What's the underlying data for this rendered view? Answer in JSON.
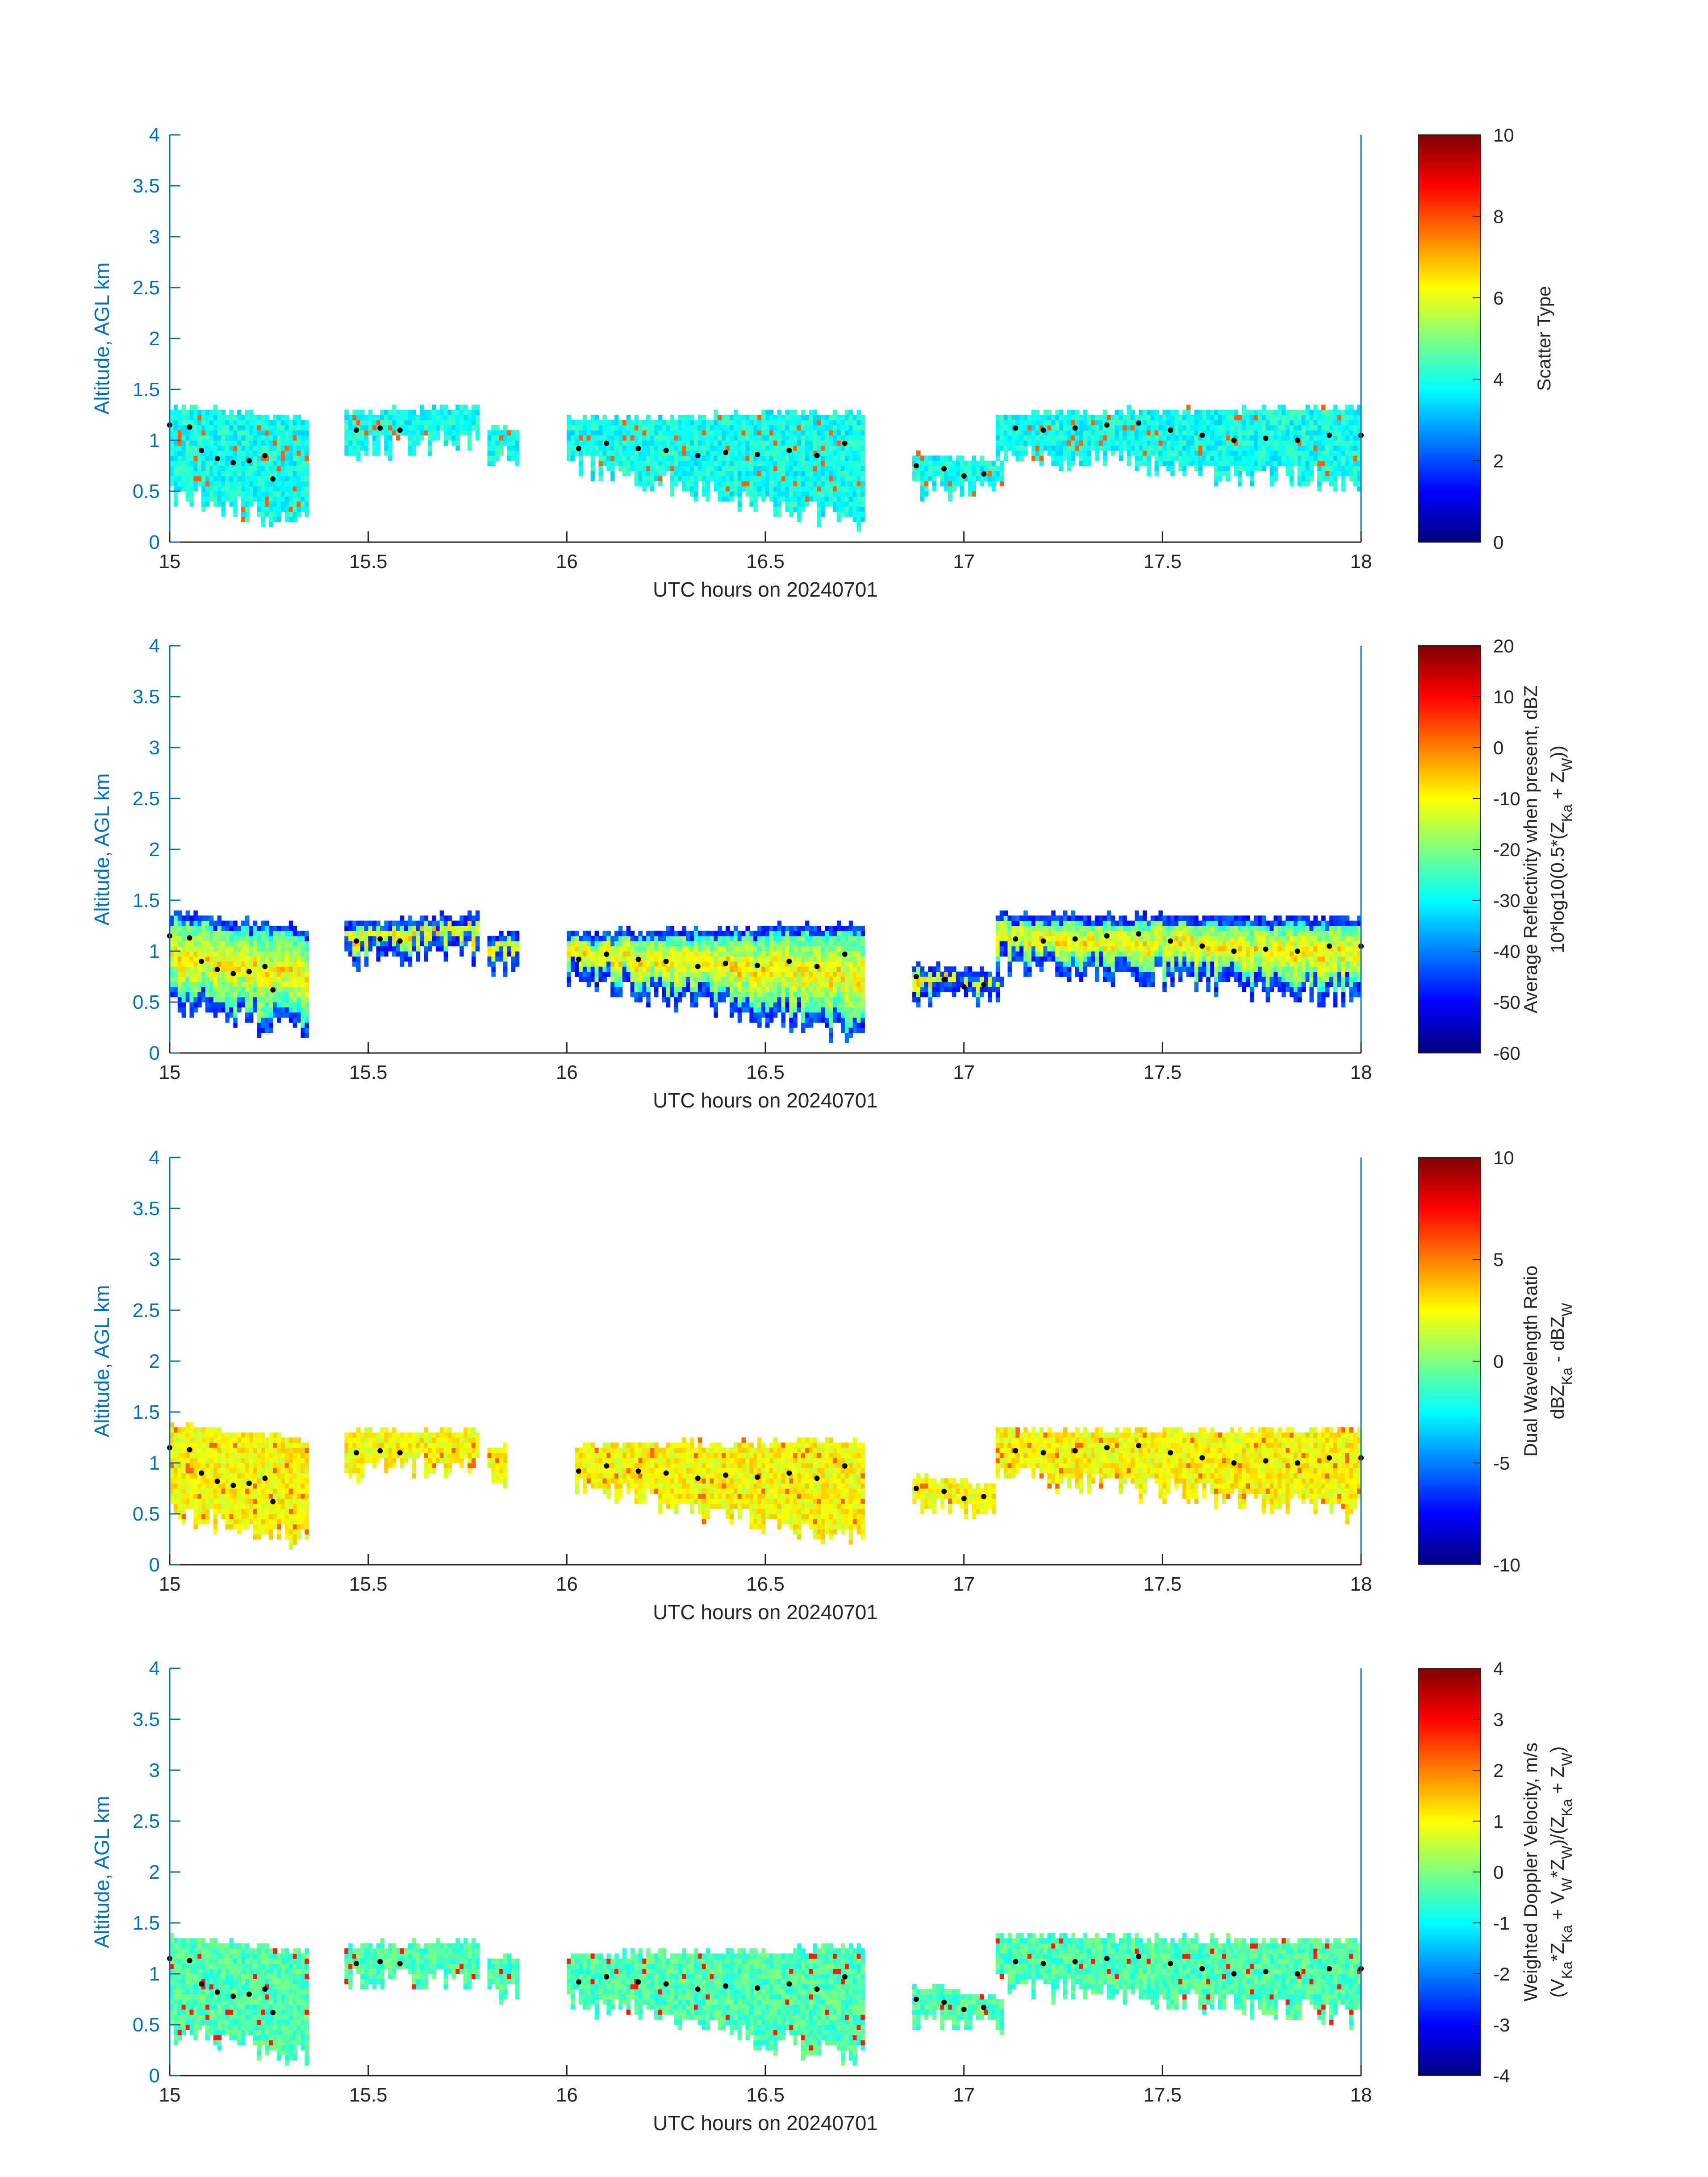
{
  "figure": {
    "shared_xlabel": "UTC hours on 20240701",
    "shared_ylabel": "Altitude, AGL km"
  },
  "chart_data": [
    {
      "type": "heatmap",
      "title": "",
      "xlabel": "UTC hours on 20240701",
      "ylabel": "Altitude, AGL km",
      "xlim": [
        15,
        18
      ],
      "ylim": [
        0,
        4
      ],
      "xticks": [
        "15",
        "15.5",
        "16",
        "16.5",
        "17",
        "17.5",
        "18"
      ],
      "yticks": [
        "0",
        "0.5",
        "1",
        "1.5",
        "2",
        "2.5",
        "3",
        "3.5",
        "4"
      ],
      "colorbar": {
        "label_lines": [
          "Scatter Type"
        ],
        "range": [
          0,
          10
        ],
        "ticks": [
          "0",
          "2",
          "4",
          "6",
          "8",
          "10"
        ]
      },
      "dominant_value": 3.9,
      "accent_value": 7.8,
      "cloud_layers": [
        {
          "x": [
            15.0,
            15.35
          ],
          "ybot": [
            0.5,
            0.2
          ],
          "ytop": [
            1.3,
            1.2
          ]
        },
        {
          "x": [
            15.44,
            15.78
          ],
          "ybot": [
            0.95,
            1.0
          ],
          "ytop": [
            1.25,
            1.3
          ]
        },
        {
          "x": [
            15.8,
            15.88
          ],
          "ybot": [
            0.85,
            0.85
          ],
          "ytop": [
            1.1,
            1.1
          ]
        },
        {
          "x": [
            16.0,
            16.75
          ],
          "ybot": [
            0.8,
            0.2
          ],
          "ytop": [
            1.2,
            1.25
          ]
        },
        {
          "x": [
            16.87,
            17.1
          ],
          "ybot": [
            0.55,
            0.6
          ],
          "ytop": [
            0.85,
            0.75
          ]
        },
        {
          "x": [
            17.08,
            18.0
          ],
          "ybot": [
            0.9,
            0.6
          ],
          "ytop": [
            1.25,
            1.3
          ]
        }
      ],
      "cloud_base_points": [
        [
          15.0,
          1.15
        ],
        [
          15.05,
          1.13
        ],
        [
          15.08,
          0.9
        ],
        [
          15.12,
          0.82
        ],
        [
          15.16,
          0.78
        ],
        [
          15.2,
          0.8
        ],
        [
          15.24,
          0.85
        ],
        [
          15.26,
          0.62
        ],
        [
          15.47,
          1.1
        ],
        [
          15.53,
          1.12
        ],
        [
          15.58,
          1.1
        ],
        [
          16.03,
          0.92
        ],
        [
          16.1,
          0.97
        ],
        [
          16.18,
          0.92
        ],
        [
          16.25,
          0.9
        ],
        [
          16.33,
          0.85
        ],
        [
          16.4,
          0.88
        ],
        [
          16.48,
          0.86
        ],
        [
          16.56,
          0.9
        ],
        [
          16.63,
          0.85
        ],
        [
          16.7,
          0.97
        ],
        [
          16.88,
          0.75
        ],
        [
          16.95,
          0.72
        ],
        [
          17.0,
          0.65
        ],
        [
          17.05,
          0.67
        ],
        [
          17.13,
          1.12
        ],
        [
          17.2,
          1.1
        ],
        [
          17.28,
          1.12
        ],
        [
          17.36,
          1.15
        ],
        [
          17.44,
          1.17
        ],
        [
          17.52,
          1.1
        ],
        [
          17.6,
          1.05
        ],
        [
          17.68,
          1.0
        ],
        [
          17.76,
          1.02
        ],
        [
          17.84,
          1.0
        ],
        [
          17.92,
          1.05
        ],
        [
          18.0,
          1.05
        ]
      ]
    },
    {
      "type": "heatmap",
      "title": "",
      "xlabel": "UTC hours on 20240701",
      "ylabel": "Altitude, AGL km",
      "xlim": [
        15,
        18
      ],
      "ylim": [
        0,
        4
      ],
      "xticks": [
        "15",
        "15.5",
        "16",
        "16.5",
        "17",
        "17.5",
        "18"
      ],
      "yticks": [
        "0",
        "0.5",
        "1",
        "1.5",
        "2",
        "2.5",
        "3",
        "3.5",
        "4"
      ],
      "colorbar": {
        "label_lines": [
          "Average Reflectivity when present, dBZ",
          "10*log10(0.5*(Z_Ka + Z_W))"
        ],
        "range": [
          -60,
          20
        ],
        "ticks": [
          "-60",
          "-50",
          "-40",
          "-30",
          "-20",
          "-10",
          "0",
          "10",
          "20"
        ]
      },
      "dominant_value": -30,
      "edge_value": -50,
      "core_value": -8,
      "cloud_layers": [
        {
          "x": [
            15.0,
            15.35
          ],
          "ybot": [
            0.5,
            0.2
          ],
          "ytop": [
            1.35,
            1.2
          ]
        },
        {
          "x": [
            15.44,
            15.78
          ],
          "ybot": [
            0.95,
            1.0
          ],
          "ytop": [
            1.25,
            1.35
          ]
        },
        {
          "x": [
            15.8,
            15.88
          ],
          "ybot": [
            0.85,
            0.85
          ],
          "ytop": [
            1.15,
            1.15
          ]
        },
        {
          "x": [
            16.0,
            16.75
          ],
          "ybot": [
            0.75,
            0.2
          ],
          "ytop": [
            1.15,
            1.25
          ]
        },
        {
          "x": [
            16.87,
            17.1
          ],
          "ybot": [
            0.55,
            0.6
          ],
          "ytop": [
            0.85,
            0.75
          ]
        },
        {
          "x": [
            17.08,
            18.0
          ],
          "ybot": [
            0.9,
            0.55
          ],
          "ytop": [
            1.35,
            1.3
          ]
        }
      ],
      "cloud_base_points": [
        [
          15.0,
          1.15
        ],
        [
          15.05,
          1.13
        ],
        [
          15.08,
          0.9
        ],
        [
          15.12,
          0.82
        ],
        [
          15.16,
          0.78
        ],
        [
          15.2,
          0.8
        ],
        [
          15.24,
          0.85
        ],
        [
          15.26,
          0.62
        ],
        [
          15.47,
          1.1
        ],
        [
          15.53,
          1.12
        ],
        [
          15.58,
          1.1
        ],
        [
          16.03,
          0.92
        ],
        [
          16.1,
          0.97
        ],
        [
          16.18,
          0.92
        ],
        [
          16.25,
          0.9
        ],
        [
          16.33,
          0.85
        ],
        [
          16.4,
          0.88
        ],
        [
          16.48,
          0.86
        ],
        [
          16.56,
          0.9
        ],
        [
          16.63,
          0.85
        ],
        [
          16.7,
          0.97
        ],
        [
          16.88,
          0.75
        ],
        [
          16.95,
          0.72
        ],
        [
          17.0,
          0.65
        ],
        [
          17.05,
          0.67
        ],
        [
          17.13,
          1.12
        ],
        [
          17.2,
          1.1
        ],
        [
          17.28,
          1.12
        ],
        [
          17.36,
          1.15
        ],
        [
          17.44,
          1.17
        ],
        [
          17.52,
          1.1
        ],
        [
          17.6,
          1.05
        ],
        [
          17.68,
          1.0
        ],
        [
          17.76,
          1.02
        ],
        [
          17.84,
          1.0
        ],
        [
          17.92,
          1.05
        ],
        [
          18.0,
          1.05
        ]
      ]
    },
    {
      "type": "heatmap",
      "title": "",
      "xlabel": "UTC hours on 20240701",
      "ylabel": "Altitude, AGL km",
      "xlim": [
        15,
        18
      ],
      "ylim": [
        0,
        4
      ],
      "xticks": [
        "15",
        "15.5",
        "16",
        "16.5",
        "17",
        "17.5",
        "18"
      ],
      "yticks": [
        "0",
        "0.5",
        "1",
        "1.5",
        "2",
        "2.5",
        "3",
        "3.5",
        "4"
      ],
      "colorbar": {
        "label_lines": [
          "Dual Wavelength Ratio",
          "dBZ_Ka - dBZ_W"
        ],
        "range": [
          -10,
          10
        ],
        "ticks": [
          "-10",
          "-5",
          "0",
          "5",
          "10"
        ]
      },
      "dominant_value": 2.5,
      "accent_value": 5.5,
      "cloud_layers": [
        {
          "x": [
            15.0,
            15.35
          ],
          "ybot": [
            0.55,
            0.25
          ],
          "ytop": [
            1.35,
            1.2
          ]
        },
        {
          "x": [
            15.44,
            15.78
          ],
          "ybot": [
            0.95,
            1.0
          ],
          "ytop": [
            1.3,
            1.3
          ]
        },
        {
          "x": [
            15.8,
            15.85
          ],
          "ybot": [
            0.9,
            0.9
          ],
          "ytop": [
            1.15,
            1.15
          ]
        },
        {
          "x": [
            16.02,
            16.75
          ],
          "ybot": [
            0.8,
            0.25
          ],
          "ytop": [
            1.15,
            1.2
          ]
        },
        {
          "x": [
            16.87,
            17.08
          ],
          "ybot": [
            0.55,
            0.6
          ],
          "ytop": [
            0.85,
            0.75
          ]
        },
        {
          "x": [
            17.08,
            18.0
          ],
          "ybot": [
            0.9,
            0.55
          ],
          "ytop": [
            1.3,
            1.3
          ]
        }
      ],
      "cloud_base_points": [
        [
          15.0,
          1.15
        ],
        [
          15.05,
          1.13
        ],
        [
          15.08,
          0.9
        ],
        [
          15.12,
          0.82
        ],
        [
          15.16,
          0.78
        ],
        [
          15.2,
          0.8
        ],
        [
          15.24,
          0.85
        ],
        [
          15.26,
          0.62
        ],
        [
          15.47,
          1.1
        ],
        [
          15.53,
          1.12
        ],
        [
          15.58,
          1.1
        ],
        [
          16.03,
          0.92
        ],
        [
          16.1,
          0.97
        ],
        [
          16.18,
          0.92
        ],
        [
          16.25,
          0.9
        ],
        [
          16.33,
          0.85
        ],
        [
          16.4,
          0.88
        ],
        [
          16.48,
          0.86
        ],
        [
          16.56,
          0.9
        ],
        [
          16.63,
          0.85
        ],
        [
          16.7,
          0.97
        ],
        [
          16.88,
          0.75
        ],
        [
          16.95,
          0.72
        ],
        [
          17.0,
          0.65
        ],
        [
          17.05,
          0.67
        ],
        [
          17.13,
          1.12
        ],
        [
          17.2,
          1.1
        ],
        [
          17.28,
          1.12
        ],
        [
          17.36,
          1.15
        ],
        [
          17.44,
          1.17
        ],
        [
          17.52,
          1.1
        ],
        [
          17.6,
          1.05
        ],
        [
          17.68,
          1.0
        ],
        [
          17.76,
          1.02
        ],
        [
          17.84,
          1.0
        ],
        [
          17.92,
          1.05
        ],
        [
          18.0,
          1.05
        ]
      ]
    },
    {
      "type": "heatmap",
      "title": "",
      "xlabel": "UTC hours on 20240701",
      "ylabel": "Altitude, AGL km",
      "xlim": [
        15,
        18
      ],
      "ylim": [
        0,
        4
      ],
      "xticks": [
        "15",
        "15.5",
        "16",
        "16.5",
        "17",
        "17.5",
        "18"
      ],
      "yticks": [
        "0",
        "0.5",
        "1",
        "1.5",
        "2",
        "2.5",
        "3",
        "3.5",
        "4"
      ],
      "colorbar": {
        "label_lines": [
          "Weighted Doppler Velocity, m/s",
          "(V_Ka*Z_Ka + V_W*Z_W)/(Z_Ka + Z_W)"
        ],
        "range": [
          -4,
          4
        ],
        "ticks": [
          "-4",
          "-3",
          "-2",
          "-1",
          "0",
          "1",
          "2",
          "3",
          "4"
        ]
      },
      "dominant_value": -0.4,
      "accent_value": 2.8,
      "cloud_layers": [
        {
          "x": [
            15.0,
            15.35
          ],
          "ybot": [
            0.45,
            0.2
          ],
          "ytop": [
            1.35,
            1.2
          ]
        },
        {
          "x": [
            15.44,
            15.78
          ],
          "ybot": [
            0.95,
            1.0
          ],
          "ytop": [
            1.25,
            1.3
          ]
        },
        {
          "x": [
            15.8,
            15.88
          ],
          "ybot": [
            0.85,
            0.85
          ],
          "ytop": [
            1.15,
            1.15
          ]
        },
        {
          "x": [
            16.0,
            16.75
          ],
          "ybot": [
            0.75,
            0.2
          ],
          "ytop": [
            1.15,
            1.25
          ]
        },
        {
          "x": [
            16.87,
            17.1
          ],
          "ybot": [
            0.55,
            0.55
          ],
          "ytop": [
            0.85,
            0.75
          ]
        },
        {
          "x": [
            17.08,
            18.0
          ],
          "ybot": [
            0.9,
            0.6
          ],
          "ytop": [
            1.35,
            1.3
          ]
        }
      ],
      "cloud_base_points": [
        [
          15.0,
          1.15
        ],
        [
          15.05,
          1.13
        ],
        [
          15.08,
          0.9
        ],
        [
          15.12,
          0.82
        ],
        [
          15.16,
          0.78
        ],
        [
          15.2,
          0.8
        ],
        [
          15.24,
          0.85
        ],
        [
          15.26,
          0.62
        ],
        [
          15.47,
          1.1
        ],
        [
          15.53,
          1.12
        ],
        [
          15.58,
          1.1
        ],
        [
          16.03,
          0.92
        ],
        [
          16.1,
          0.97
        ],
        [
          16.18,
          0.92
        ],
        [
          16.25,
          0.9
        ],
        [
          16.33,
          0.85
        ],
        [
          16.4,
          0.88
        ],
        [
          16.48,
          0.86
        ],
        [
          16.56,
          0.9
        ],
        [
          16.63,
          0.85
        ],
        [
          16.7,
          0.97
        ],
        [
          16.88,
          0.75
        ],
        [
          16.95,
          0.72
        ],
        [
          17.0,
          0.65
        ],
        [
          17.05,
          0.67
        ],
        [
          17.13,
          1.12
        ],
        [
          17.2,
          1.1
        ],
        [
          17.28,
          1.12
        ],
        [
          17.36,
          1.15
        ],
        [
          17.44,
          1.17
        ],
        [
          17.52,
          1.1
        ],
        [
          17.6,
          1.05
        ],
        [
          17.68,
          1.0
        ],
        [
          17.76,
          1.02
        ],
        [
          17.84,
          1.0
        ],
        [
          17.92,
          1.05
        ],
        [
          18.0,
          1.05
        ]
      ]
    }
  ]
}
